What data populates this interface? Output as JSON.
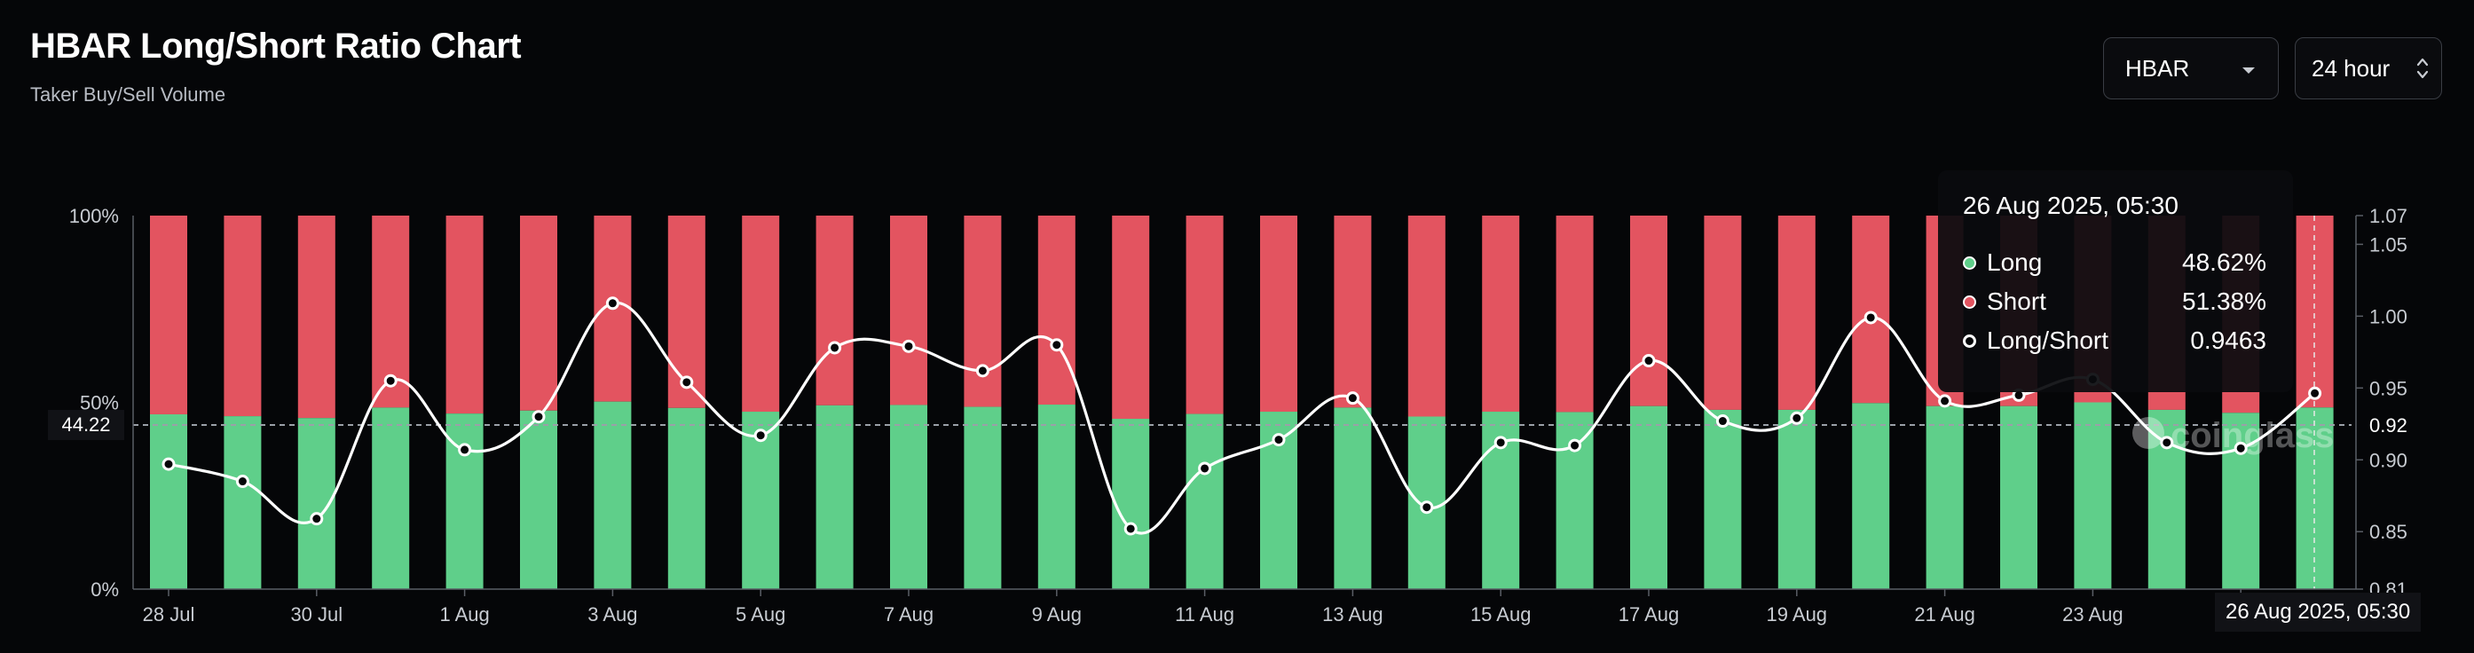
{
  "header": {
    "title": "HBAR Long/Short Ratio Chart",
    "subtitle": "Taker Buy/Sell Volume",
    "coin_select": "HBAR",
    "period_select": "24 hour"
  },
  "colors": {
    "long": "#5fcf8a",
    "short": "#e35460",
    "line": "#ffffff",
    "background": "#050608"
  },
  "watermark": "coinglass",
  "reference_line": {
    "value": "44.22",
    "right_value": "0.92"
  },
  "tooltip": {
    "date": "26 Aug 2025, 05:30",
    "rows": [
      {
        "label": "Long",
        "value": "48.62%",
        "dot": "long"
      },
      {
        "label": "Short",
        "value": "51.38%",
        "dot": "short"
      },
      {
        "label": "Long/Short",
        "value": "0.9463",
        "dot": "ratio"
      }
    ]
  },
  "cursor_label": "26 Aug 2025, 05:30",
  "chart_data": {
    "type": "bar",
    "stacked": true,
    "categories": [
      "28 Jul",
      "29 Jul",
      "30 Jul",
      "31 Jul",
      "1 Aug",
      "2 Aug",
      "3 Aug",
      "4 Aug",
      "5 Aug",
      "6 Aug",
      "7 Aug",
      "8 Aug",
      "9 Aug",
      "10 Aug",
      "11 Aug",
      "12 Aug",
      "13 Aug",
      "14 Aug",
      "15 Aug",
      "16 Aug",
      "17 Aug",
      "18 Aug",
      "19 Aug",
      "20 Aug",
      "21 Aug",
      "22 Aug",
      "23 Aug",
      "24 Aug",
      "25 Aug",
      "26 Aug"
    ],
    "x_tick_labels": [
      "28 Jul",
      "30 Jul",
      "1 Aug",
      "3 Aug",
      "5 Aug",
      "7 Aug",
      "9 Aug",
      "11 Aug",
      "13 Aug",
      "15 Aug",
      "17 Aug",
      "19 Aug",
      "21 Aug",
      "23 Aug",
      ""
    ],
    "series": [
      {
        "name": "Long",
        "axis": "left",
        "values": [
          46.8,
          46.3,
          45.8,
          48.6,
          47.0,
          47.8,
          50.2,
          48.5,
          47.5,
          49.2,
          49.3,
          48.8,
          49.4,
          45.6,
          46.9,
          47.5,
          48.6,
          46.2,
          47.5,
          47.4,
          49.0,
          48.0,
          48.0,
          49.8,
          49.0,
          49.0,
          50.0,
          48.0,
          47.2,
          48.62
        ]
      },
      {
        "name": "Short",
        "axis": "left",
        "values": [
          53.2,
          53.7,
          54.2,
          51.4,
          53.0,
          52.2,
          49.8,
          51.5,
          52.5,
          50.8,
          50.7,
          51.2,
          50.6,
          54.4,
          53.1,
          52.5,
          51.4,
          53.8,
          52.5,
          52.6,
          51.0,
          52.0,
          52.0,
          50.2,
          51.0,
          51.0,
          50.0,
          52.0,
          52.8,
          51.38
        ]
      },
      {
        "name": "Long/Short",
        "type": "line",
        "axis": "right",
        "values": [
          0.897,
          0.885,
          0.859,
          0.955,
          0.907,
          0.93,
          1.009,
          0.954,
          0.917,
          0.978,
          0.979,
          0.962,
          0.98,
          0.852,
          0.894,
          0.914,
          0.943,
          0.867,
          0.912,
          0.91,
          0.969,
          0.927,
          0.929,
          0.999,
          0.941,
          0.945,
          0.956,
          0.912,
          0.908,
          0.9463
        ]
      }
    ],
    "left_axis": {
      "ticks": [
        "0%",
        "50%",
        "100%"
      ],
      "ylim": [
        0,
        100
      ]
    },
    "right_axis": {
      "ticks": [
        "0.81",
        "0.85",
        "0.90",
        "0.95",
        "1.00",
        "1.05",
        "1.07"
      ],
      "ylim": [
        0.81,
        1.07
      ]
    },
    "grid": false,
    "legend": "tooltip"
  }
}
